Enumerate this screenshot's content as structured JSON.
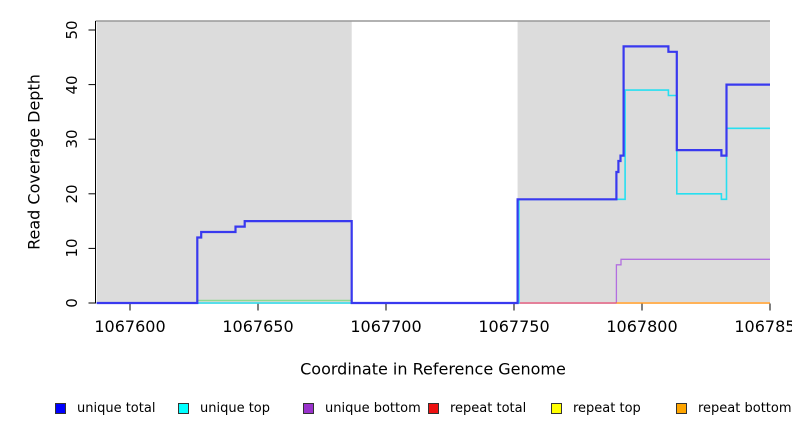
{
  "chart_data": {
    "type": "line",
    "title": "",
    "xlabel": "Coordinate in Reference Genome",
    "ylabel": "Read Coverage Depth",
    "xlim": [
      1067587,
      1067850
    ],
    "ylim": [
      0,
      51.6
    ],
    "grid": false,
    "legend_position": "bottom",
    "x_ticks": [
      {
        "label": "1067600",
        "value": 1067600
      },
      {
        "label": "1067650",
        "value": 1067650
      },
      {
        "label": "1067700",
        "value": 1067700
      },
      {
        "label": "1067750",
        "value": 1067750
      },
      {
        "label": "1067800",
        "value": 1067800
      },
      {
        "label": "1067850",
        "value": 1067850
      }
    ],
    "y_ticks": [
      {
        "label": "0",
        "value": 0
      },
      {
        "label": "10",
        "value": 10
      },
      {
        "label": "20",
        "value": 20
      },
      {
        "label": "30",
        "value": 30
      },
      {
        "label": "40",
        "value": 40
      },
      {
        "label": "50",
        "value": 50
      }
    ],
    "shaded_regions": [
      {
        "x1": 1067587,
        "x2": 1067686.6
      },
      {
        "x1": 1067751.4,
        "x2": 1067850
      }
    ],
    "region_color": "#dcdcdc",
    "top_border_color": "#999999",
    "series": [
      {
        "name": "repeat top",
        "color": "#ecec52",
        "width": 1.3,
        "points": [
          [
            1067626.3,
            0
          ],
          [
            1067686.6,
            0
          ]
        ]
      },
      {
        "name": "unlabeled green baseline",
        "color": "#8fd88f",
        "width": 1.4,
        "points": [
          [
            1067626.3,
            0.45
          ],
          [
            1067686.6,
            0.45
          ]
        ]
      },
      {
        "name": "unique bottom",
        "color": "#b26fe0",
        "width": 1.3,
        "points": [
          [
            1067587,
            0
          ],
          [
            1067790,
            0
          ],
          [
            1067790,
            7
          ],
          [
            1067791.8,
            7
          ],
          [
            1067791.8,
            8
          ],
          [
            1067850,
            8
          ]
        ]
      },
      {
        "name": "repeat total",
        "color": "#e04a62",
        "width": 1.3,
        "points": [
          [
            1067752,
            0
          ],
          [
            1067790,
            0
          ]
        ]
      },
      {
        "name": "repeat bottom",
        "color": "#ff9820",
        "width": 1.4,
        "points": [
          [
            1067790,
            0
          ],
          [
            1067850,
            0
          ]
        ]
      },
      {
        "name": "unique top",
        "color": "#27dff0",
        "width": 1.6,
        "points": [
          [
            1067587,
            0
          ],
          [
            1067751.9,
            0
          ],
          [
            1067751.9,
            19
          ],
          [
            1067793.4,
            19
          ],
          [
            1067793.4,
            39
          ],
          [
            1067810.3,
            39
          ],
          [
            1067810.3,
            38
          ],
          [
            1067813.6,
            38
          ],
          [
            1067813.6,
            20
          ],
          [
            1067831,
            20
          ],
          [
            1067831,
            19
          ],
          [
            1067833,
            19
          ],
          [
            1067833,
            32
          ],
          [
            1067850,
            32
          ]
        ]
      },
      {
        "name": "unique total",
        "color": "#3939ef",
        "width": 2.2,
        "points": [
          [
            1067587,
            0
          ],
          [
            1067626.3,
            0
          ],
          [
            1067626.3,
            12
          ],
          [
            1067627.8,
            12
          ],
          [
            1067627.8,
            13
          ],
          [
            1067641.2,
            13
          ],
          [
            1067641.2,
            14
          ],
          [
            1067644.8,
            14
          ],
          [
            1067644.8,
            15
          ],
          [
            1067686.6,
            15
          ],
          [
            1067686.6,
            0
          ],
          [
            1067751.4,
            0
          ],
          [
            1067751.4,
            19
          ],
          [
            1067790,
            19
          ],
          [
            1067790,
            24
          ],
          [
            1067790.8,
            24
          ],
          [
            1067790.8,
            26
          ],
          [
            1067791.6,
            26
          ],
          [
            1067791.6,
            27
          ],
          [
            1067792.8,
            27
          ],
          [
            1067792.8,
            47
          ],
          [
            1067810.3,
            47
          ],
          [
            1067810.3,
            46
          ],
          [
            1067813.6,
            46
          ],
          [
            1067813.6,
            28
          ],
          [
            1067831,
            28
          ],
          [
            1067831,
            27
          ],
          [
            1067833,
            27
          ],
          [
            1067833,
            40
          ],
          [
            1067850,
            40
          ]
        ]
      }
    ],
    "legend": [
      {
        "label": "unique total",
        "color": "#0000ff"
      },
      {
        "label": "unique top",
        "color": "#00ffff"
      },
      {
        "label": "unique bottom",
        "color": "#9932cc"
      },
      {
        "label": "repeat total",
        "color": "#ee1111"
      },
      {
        "label": "repeat top",
        "color": "#ffff00"
      },
      {
        "label": "repeat bottom",
        "color": "#ffa500"
      }
    ]
  }
}
